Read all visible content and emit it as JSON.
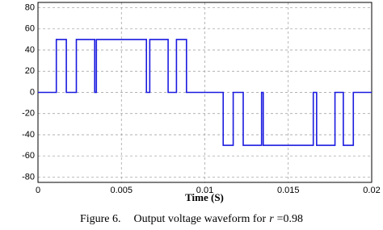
{
  "chart_data": {
    "type": "line",
    "xlabel": "Time (S)",
    "x": [
      0,
      0.0011,
      0.0011,
      0.0017,
      0.0017,
      0.0023,
      0.0023,
      0.0034,
      0.0034,
      0.0035,
      0.0035,
      0.0065,
      0.0065,
      0.0067,
      0.0067,
      0.0078,
      0.0078,
      0.0083,
      0.0083,
      0.0089,
      0.0089,
      0.0111,
      0.0111,
      0.0117,
      0.0117,
      0.0123,
      0.0123,
      0.0134,
      0.0134,
      0.0135,
      0.0135,
      0.0165,
      0.0165,
      0.0167,
      0.0167,
      0.0178,
      0.0178,
      0.0183,
      0.0183,
      0.0189,
      0.0189,
      0.02
    ],
    "values": [
      0,
      0,
      50,
      50,
      0,
      0,
      50,
      50,
      0,
      0,
      50,
      50,
      0,
      0,
      50,
      50,
      0,
      0,
      50,
      50,
      0,
      0,
      -50,
      -50,
      0,
      0,
      -50,
      -50,
      0,
      0,
      -50,
      -50,
      0,
      0,
      -50,
      -50,
      0,
      0,
      -50,
      -50,
      0,
      0
    ],
    "color": "#1a1adf",
    "xlim": [
      0,
      0.02
    ],
    "xticks": [
      0,
      0.005,
      0.01,
      0.015,
      0.02
    ],
    "ylim": [
      -85,
      85
    ],
    "yticks": [
      -80,
      -60,
      -40,
      -20,
      0,
      20,
      40,
      60,
      80
    ],
    "grid": true
  },
  "caption": {
    "label": "Figure 6.",
    "text": "Output voltage waveform for",
    "var": "r",
    "value": "=0.98"
  }
}
